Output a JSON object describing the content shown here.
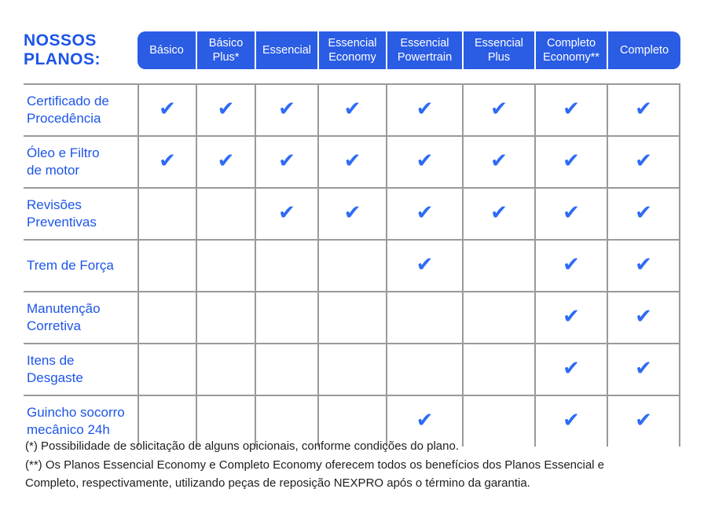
{
  "title": "NOSSOS\nPLANOS:",
  "plans": [
    "Básico",
    "Básico Plus*",
    "Essencial",
    "Essencial Economy",
    "Essencial Powertrain",
    "Essencial Plus",
    "Completo Economy**",
    "Completo"
  ],
  "features": [
    {
      "label": "Certificado de\nProcedência",
      "checks": [
        1,
        1,
        1,
        1,
        1,
        1,
        1,
        1
      ]
    },
    {
      "label": "Óleo e Filtro\nde motor",
      "checks": [
        1,
        1,
        1,
        1,
        1,
        1,
        1,
        1
      ]
    },
    {
      "label": "Revisões\nPreventivas",
      "checks": [
        0,
        0,
        1,
        1,
        1,
        1,
        1,
        1
      ]
    },
    {
      "label": "Trem de Força",
      "checks": [
        0,
        0,
        0,
        0,
        1,
        0,
        1,
        1
      ]
    },
    {
      "label": "Manutenção\nCorretiva",
      "checks": [
        0,
        0,
        0,
        0,
        0,
        0,
        1,
        1
      ]
    },
    {
      "label": "Itens de Desgaste",
      "checks": [
        0,
        0,
        0,
        0,
        0,
        0,
        1,
        1
      ]
    },
    {
      "label": "Guincho socorro\nmecânico 24h",
      "checks": [
        0,
        0,
        0,
        0,
        1,
        0,
        1,
        1
      ]
    }
  ],
  "check_glyph": "✔",
  "footnotes": {
    "line1": "(*) Possibilidade de solicitação de alguns opicionais, conforme condições do plano.",
    "line2": "(**) Os Planos Essencial Economy e Completo Economy oferecem todos os benefícios dos Planos Essencial e Completo, respectivamente, utilizando peças de reposição NEXPRO após o término da garantia."
  },
  "colors": {
    "header_bg": "#2a5ce4",
    "header_text": "#ffffff",
    "check": "#2e6bf5",
    "label_text": "#1d55e8",
    "title_text": "#1d55e8",
    "grid": "#9a9a9a",
    "footnote_text": "#1d1d1b"
  }
}
